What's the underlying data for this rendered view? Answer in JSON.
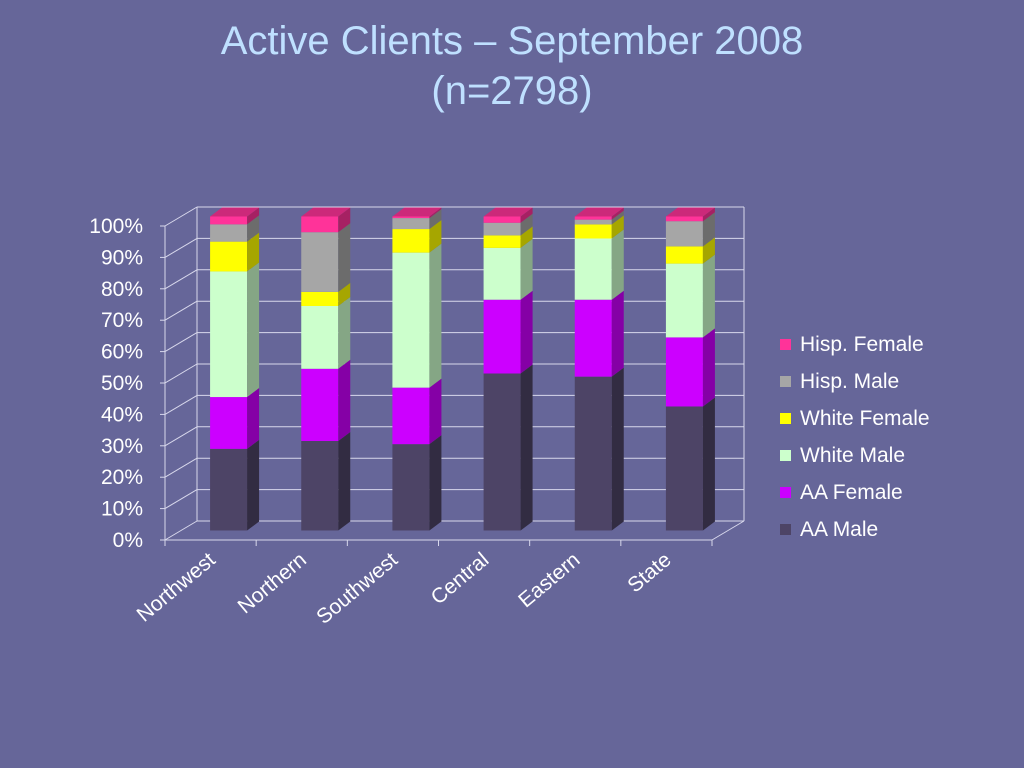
{
  "slide": {
    "title_line1": "Active Clients – September 2008",
    "title_line2": "(n=2798)"
  },
  "colors": {
    "background": "#666699",
    "title": "#bfe0ff",
    "gridline": "#d8d8ec",
    "axis_text": "#ffffff"
  },
  "chart_data": {
    "type": "bar",
    "stacked": true,
    "percent_stacked": true,
    "three_d": true,
    "categories": [
      "Northwest",
      "Northern",
      "Southwest",
      "Central",
      "Eastern",
      "State"
    ],
    "y_ticks": [
      "0%",
      "10%",
      "20%",
      "30%",
      "40%",
      "50%",
      "60%",
      "70%",
      "80%",
      "90%",
      "100%"
    ],
    "ylim": [
      0,
      100
    ],
    "grid": true,
    "legend_position": "right",
    "series": [
      {
        "name": "AA Male",
        "color": "#4d4466",
        "values": [
          26,
          28.5,
          27.5,
          50,
          49,
          39.5
        ]
      },
      {
        "name": "AA Female",
        "color": "#cc00ff",
        "values": [
          16.5,
          23,
          18,
          23.5,
          24.5,
          22
        ]
      },
      {
        "name": "White Male",
        "color": "#ccffcc",
        "values": [
          40,
          20,
          43,
          16.5,
          19.5,
          23.5
        ]
      },
      {
        "name": "White Female",
        "color": "#ffff00",
        "values": [
          9.5,
          4.5,
          7.5,
          4,
          4.5,
          5.5
        ]
      },
      {
        "name": "Hisp. Male",
        "color": "#a6a6a6",
        "values": [
          5.5,
          19,
          3.5,
          4,
          1.5,
          8
        ]
      },
      {
        "name": "Hisp. Female",
        "color": "#ff3399",
        "values": [
          2.5,
          5,
          0.5,
          2,
          1,
          1.5
        ]
      }
    ]
  }
}
